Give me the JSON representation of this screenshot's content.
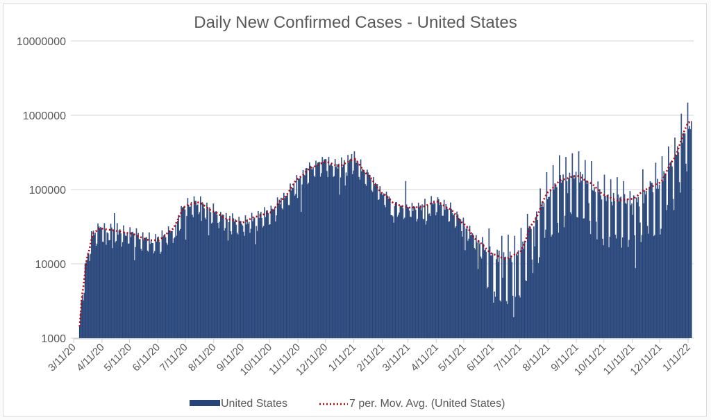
{
  "chart_data": {
    "type": "bar",
    "title": "Daily New Confirmed Cases - United States",
    "xlabel": "",
    "ylabel": "",
    "y_scale": "log",
    "ylim": [
      1000,
      10000000
    ],
    "y_ticks": [
      1000,
      10000,
      100000,
      1000000,
      10000000
    ],
    "y_tick_labels": [
      "1000",
      "10000",
      "100000",
      "1000000",
      "10000000"
    ],
    "x_tick_labels": [
      "3/11/20",
      "4/11/20",
      "5/11/20",
      "6/11/20",
      "7/11/20",
      "8/11/20",
      "9/11/20",
      "10/11/20",
      "11/11/20",
      "12/11/20",
      "1/11/21",
      "2/11/21",
      "3/11/21",
      "4/11/21",
      "5/11/21",
      "6/11/21",
      "7/11/21",
      "8/11/21",
      "9/11/21",
      "10/11/21",
      "11/11/21",
      "12/11/21",
      "1/11/22"
    ],
    "x_range": [
      "3/11/20",
      "1/14/22"
    ],
    "gridlines": "horizontal",
    "legend_position": "bottom",
    "colors": {
      "bars": "#264478",
      "moving_avg": "#c00000"
    },
    "series": [
      {
        "name": "United States",
        "kind": "bar",
        "description": "Daily new confirmed cases, one bar per day from 3/11/20 to 1/14/22; weekly reporting dips and occasional spikes around the moving average",
        "start_date": "3/11/20",
        "notable_values": [
          {
            "date": "4/24/20",
            "value": 48000
          },
          {
            "date": "1/8/21",
            "value": 300000
          },
          {
            "date": "3/8/21",
            "value": 130000
          },
          {
            "date": "6/14/21",
            "value": 3600
          },
          {
            "date": "7/6/21",
            "value": 3600
          },
          {
            "date": "1/3/22",
            "value": 1050000
          },
          {
            "date": "1/10/22",
            "value": 1480000
          }
        ]
      },
      {
        "name": "7 per. Mov. Avg. (United States)",
        "kind": "line",
        "style": "dotted",
        "points": [
          {
            "date": "3/16/20",
            "value": 1100
          },
          {
            "date": "3/20/20",
            "value": 4100
          },
          {
            "date": "3/25/20",
            "value": 12000
          },
          {
            "date": "4/1/20",
            "value": 26000
          },
          {
            "date": "4/8/20",
            "value": 30000
          },
          {
            "date": "4/20/20",
            "value": 28500
          },
          {
            "date": "5/11/20",
            "value": 25800
          },
          {
            "date": "6/1/20",
            "value": 20800
          },
          {
            "date": "6/11/20",
            "value": 20800
          },
          {
            "date": "6/25/20",
            "value": 28000
          },
          {
            "date": "7/11/20",
            "value": 61000
          },
          {
            "date": "7/25/20",
            "value": 67000
          },
          {
            "date": "8/11/20",
            "value": 50000
          },
          {
            "date": "8/25/20",
            "value": 40000
          },
          {
            "date": "9/11/20",
            "value": 36000
          },
          {
            "date": "9/25/20",
            "value": 43000
          },
          {
            "date": "10/11/20",
            "value": 49000
          },
          {
            "date": "10/25/20",
            "value": 75000
          },
          {
            "date": "11/11/20",
            "value": 143000
          },
          {
            "date": "11/25/20",
            "value": 198000
          },
          {
            "date": "12/11/20",
            "value": 236000
          },
          {
            "date": "12/25/20",
            "value": 207000
          },
          {
            "date": "1/11/21",
            "value": 257000
          },
          {
            "date": "1/25/21",
            "value": 160000
          },
          {
            "date": "2/11/21",
            "value": 88000
          },
          {
            "date": "2/25/21",
            "value": 63000
          },
          {
            "date": "3/11/21",
            "value": 57000
          },
          {
            "date": "3/25/21",
            "value": 58000
          },
          {
            "date": "4/11/21",
            "value": 69000
          },
          {
            "date": "4/25/21",
            "value": 55000
          },
          {
            "date": "5/11/21",
            "value": 34000
          },
          {
            "date": "5/25/21",
            "value": 20600
          },
          {
            "date": "6/11/21",
            "value": 13500
          },
          {
            "date": "6/25/21",
            "value": 11600
          },
          {
            "date": "7/11/21",
            "value": 14400
          },
          {
            "date": "7/25/21",
            "value": 35600
          },
          {
            "date": "8/11/21",
            "value": 94000
          },
          {
            "date": "8/25/21",
            "value": 135000
          },
          {
            "date": "9/11/21",
            "value": 154000
          },
          {
            "date": "9/25/21",
            "value": 124000
          },
          {
            "date": "10/11/21",
            "value": 84000
          },
          {
            "date": "10/25/21",
            "value": 71000
          },
          {
            "date": "11/11/21",
            "value": 75000
          },
          {
            "date": "11/25/21",
            "value": 100000
          },
          {
            "date": "12/11/21",
            "value": 124000
          },
          {
            "date": "12/25/21",
            "value": 248000
          },
          {
            "date": "1/11/22",
            "value": 805000
          },
          {
            "date": "1/14/22",
            "value": 780000
          }
        ]
      }
    ],
    "legend": [
      {
        "label": "United States",
        "marker": "bar"
      },
      {
        "label": "7 per. Mov. Avg. (United States)",
        "marker": "dotted-line"
      }
    ]
  }
}
